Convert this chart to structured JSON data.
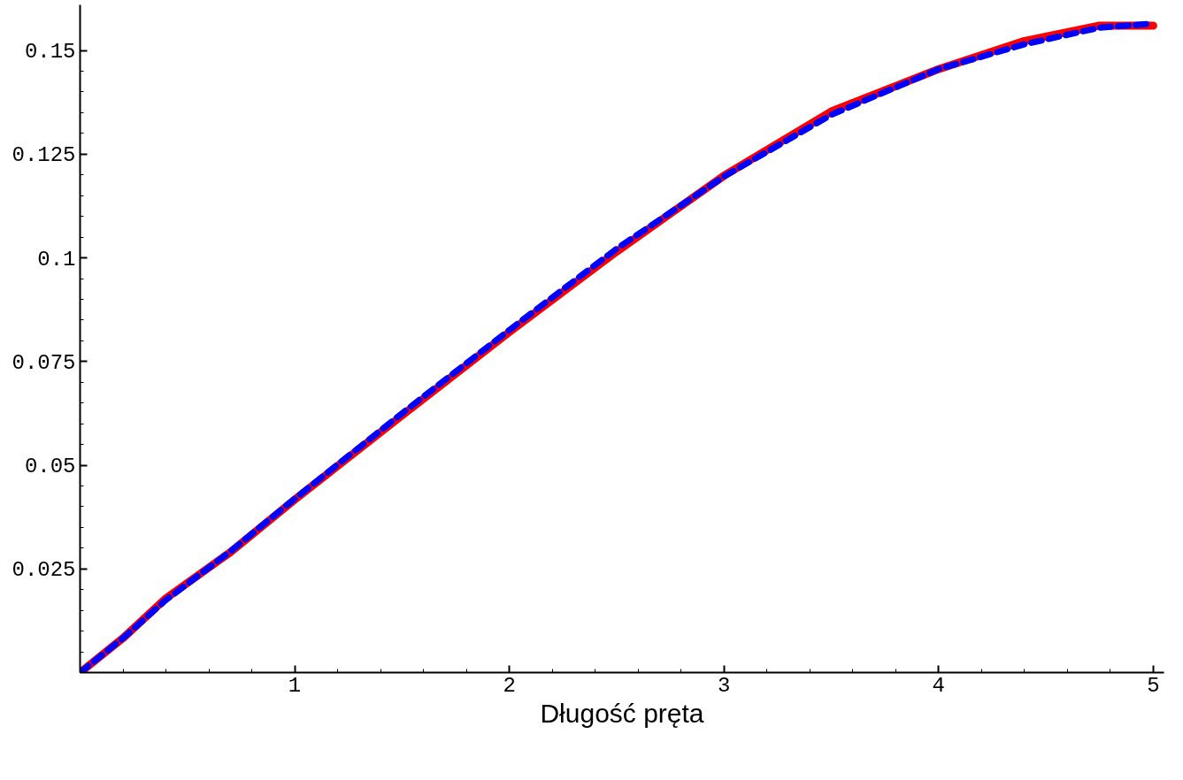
{
  "chart_data": {
    "type": "line",
    "xlabel": "Długość pręta",
    "xlim": [
      0,
      5.05
    ],
    "ylim": [
      0,
      0.161
    ],
    "xticks": [
      1,
      2,
      3,
      4,
      5
    ],
    "yticks": [
      0.025,
      0.05,
      0.075,
      0.1,
      0.125,
      0.15
    ],
    "grid": false,
    "series": [
      {
        "color": "#ff0000",
        "line_style": "solid",
        "x": [
          0,
          0.2,
          0.4,
          0.7,
          1,
          1.5,
          2,
          2.5,
          3,
          3.5,
          4,
          4.4,
          4.75,
          5
        ],
        "values": [
          0,
          0.0083,
          0.0179,
          0.029,
          0.0417,
          0.062,
          0.0821,
          0.1015,
          0.1198,
          0.1353,
          0.1455,
          0.1523,
          0.156,
          0.156
        ]
      },
      {
        "color": "#0000ff",
        "line_style": "dashed",
        "x": [
          0,
          0.2,
          0.4,
          0.7,
          1,
          1.5,
          2,
          2.5,
          3,
          3.5,
          4,
          4.4,
          4.75,
          5
        ],
        "values": [
          0,
          0.0083,
          0.0175,
          0.0292,
          0.0419,
          0.0625,
          0.0826,
          0.1022,
          0.1196,
          0.1345,
          0.1455,
          0.1515,
          0.1555,
          0.1565
        ]
      }
    ]
  }
}
